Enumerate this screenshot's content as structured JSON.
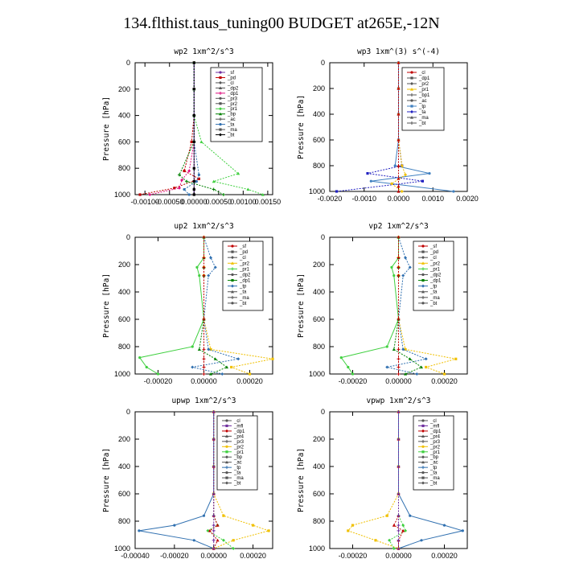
{
  "title": "134.flthist.taus_tuning00  BUDGET at265E,-12N",
  "chart_data": [
    {
      "type": "line",
      "title": "wp2   1xm^2/s^3",
      "ylabel": "Pressure [hPa]",
      "ylim": [
        1000,
        0
      ],
      "xlim": [
        -0.0012,
        0.0016
      ],
      "xticks": [
        -0.001,
        -0.0005,
        0.0,
        0.0005,
        0.001,
        0.0015
      ],
      "xtick_labels": [
        "-0.00100",
        "-0.00050",
        "0.00000",
        "0.00050",
        "0.00100",
        "0.00150"
      ],
      "yticks": [
        0,
        200,
        400,
        600,
        800,
        1000
      ],
      "legend": [
        "_sf",
        "_pd",
        "_cl",
        "_dp2",
        "_dp1",
        "_pr3",
        "_pr2",
        "_pr1",
        "_bp",
        "_ac",
        "_ta",
        "_ma",
        "_bt"
      ],
      "series": [
        {
          "name": "_sf",
          "color": "#7030a0",
          "x": [
            0,
            0,
            0,
            0,
            0,
            0,
            0,
            0
          ],
          "y": [
            0,
            200,
            400,
            600,
            800,
            900,
            960,
            1000
          ]
        },
        {
          "name": "_pd",
          "color": "#c00000",
          "x": [
            0,
            0,
            0,
            -5e-05,
            -0.0002,
            0.0001,
            -0.0004,
            -0.0011
          ],
          "y": [
            0,
            200,
            400,
            600,
            820,
            880,
            950,
            1000
          ]
        },
        {
          "name": "_dp1",
          "color": "#e01080",
          "x": [
            0,
            0,
            0,
            0,
            -0.0001,
            -0.00025,
            -0.0003,
            -0.0009
          ],
          "y": [
            0,
            200,
            400,
            600,
            820,
            890,
            950,
            1000
          ]
        },
        {
          "name": "_pr1",
          "color": "#40d040",
          "x": [
            0,
            0,
            0,
            0.00015,
            0.0009,
            0.0004,
            0.0011,
            0.0014
          ],
          "y": [
            0,
            200,
            400,
            600,
            840,
            900,
            960,
            1000
          ]
        },
        {
          "name": "_bp",
          "color": "#008000",
          "x": [
            0,
            0,
            0,
            0,
            -0.0003,
            -0.00015,
            0.0004,
            0.0006
          ],
          "y": [
            0,
            200,
            400,
            600,
            850,
            900,
            960,
            1000
          ]
        },
        {
          "name": "_ta",
          "color": "#3070b0",
          "x": [
            0,
            0,
            0,
            0,
            0.0001,
            5e-05,
            -0.0002,
            -0.0001
          ],
          "y": [
            0,
            200,
            400,
            600,
            850,
            900,
            960,
            1000
          ]
        },
        {
          "name": "_bt",
          "color": "#000000",
          "x": [
            0,
            0,
            0,
            0,
            0,
            0,
            0,
            0
          ],
          "y": [
            0,
            200,
            400,
            600,
            800,
            900,
            960,
            1000
          ]
        }
      ]
    },
    {
      "type": "line",
      "title": "wp3   1xm^(3) s^(-4)",
      "ylabel": "Pressure [hPa]",
      "ylim": [
        1000,
        0
      ],
      "xlim": [
        -0.002,
        0.002
      ],
      "xticks": [
        -0.002,
        -0.001,
        0.0,
        0.001,
        0.002
      ],
      "xtick_labels": [
        "-0.0020",
        "-0.0010",
        "0.0000",
        "0.0010",
        "0.0020"
      ],
      "yticks": [
        0,
        200,
        400,
        600,
        800,
        1000
      ],
      "legend": [
        "_cl",
        "_dp1",
        "_pr2",
        "_pr1",
        "_bp1",
        "_ac",
        "_tp",
        "_ta",
        "_ma",
        "_bt"
      ],
      "series": [
        {
          "name": "_tp",
          "color": "#4080c0",
          "x": [
            0,
            0,
            0,
            0,
            -0.0001,
            0.0009,
            -0.0008,
            0.0016
          ],
          "y": [
            0,
            200,
            400,
            600,
            800,
            860,
            920,
            1000
          ]
        },
        {
          "name": "_ta",
          "color": "#2020c0",
          "x": [
            0,
            0,
            0,
            0,
            0.0001,
            -0.0009,
            0.0007,
            -0.0018
          ],
          "y": [
            0,
            200,
            400,
            600,
            800,
            860,
            920,
            1000
          ]
        },
        {
          "name": "_pr1",
          "color": "#f0c000",
          "x": [
            0,
            0,
            0,
            0,
            0.0001,
            0.0002,
            -0.0002,
            0.0001
          ],
          "y": [
            0,
            200,
            400,
            600,
            800,
            870,
            940,
            1000
          ]
        },
        {
          "name": "_cl",
          "color": "#c00000",
          "x": [
            0,
            0,
            0,
            0,
            0,
            0,
            0,
            0
          ],
          "y": [
            0,
            200,
            400,
            600,
            800,
            900,
            960,
            1000
          ]
        }
      ]
    },
    {
      "type": "line",
      "title": "up2   1xm^2/s^3",
      "ylabel": "Pressure [hPa]",
      "ylim": [
        1000,
        0
      ],
      "xlim": [
        -0.0003,
        0.0003
      ],
      "xticks": [
        -0.0002,
        0.0,
        0.0002
      ],
      "xtick_labels": [
        "-0.00020",
        "0.00000",
        "0.00020"
      ],
      "yticks": [
        0,
        200,
        400,
        600,
        800,
        1000
      ],
      "legend": [
        "_sf",
        "_pd",
        "_cl",
        "_pr2",
        "_pr1",
        "_dp2",
        "_dp1",
        "_tp",
        "_ta",
        "_ma",
        "_bt"
      ],
      "series": [
        {
          "name": "_pr1",
          "color": "#40d040",
          "x": [
            0,
            0,
            -3e-05,
            -2e-05,
            0,
            -5e-05,
            -0.00028,
            -0.00025,
            -0.0002
          ],
          "y": [
            0,
            150,
            220,
            280,
            600,
            800,
            880,
            950,
            1000
          ]
        },
        {
          "name": "_pr2",
          "color": "#f0c000",
          "x": [
            0,
            0,
            0,
            0,
            0,
            3e-05,
            0.0003,
            0.00012,
            0.0002
          ],
          "y": [
            0,
            150,
            220,
            280,
            600,
            820,
            890,
            950,
            1000
          ]
        },
        {
          "name": "_tp",
          "color": "#3070b0",
          "x": [
            0,
            3e-05,
            5e-05,
            2e-05,
            0,
            2e-05,
            0.00015,
            -5e-05,
            8e-05
          ],
          "y": [
            0,
            150,
            220,
            280,
            600,
            820,
            890,
            950,
            1000
          ]
        },
        {
          "name": "_dp1",
          "color": "#008000",
          "x": [
            0,
            0,
            0,
            0,
            0,
            -2e-05,
            5e-05,
            0.0001,
            3e-05
          ],
          "y": [
            0,
            150,
            220,
            280,
            600,
            820,
            890,
            950,
            1000
          ]
        },
        {
          "name": "_sf",
          "color": "#c00000",
          "x": [
            0,
            0,
            0,
            0,
            0,
            0,
            0,
            0,
            0
          ],
          "y": [
            0,
            150,
            220,
            280,
            600,
            820,
            890,
            950,
            1000
          ]
        }
      ]
    },
    {
      "type": "line",
      "title": "vp2   1xm^2/s^3",
      "ylabel": "Pressure [hPa]",
      "ylim": [
        1000,
        0
      ],
      "xlim": [
        -0.0003,
        0.0003
      ],
      "xticks": [
        -0.0002,
        0.0,
        0.0002
      ],
      "xtick_labels": [
        "-0.00020",
        "0.00000",
        "0.00020"
      ],
      "yticks": [
        0,
        200,
        400,
        600,
        800,
        1000
      ],
      "legend": [
        "_sf",
        "_pd",
        "_cl",
        "_pr2",
        "_pr1",
        "_dp2",
        "_dp1",
        "_tp",
        "_ta",
        "_ma",
        "_bt"
      ],
      "series": [
        {
          "name": "_pr1",
          "color": "#40d040",
          "x": [
            0,
            0,
            -3e-05,
            -2e-05,
            0,
            -5e-05,
            -0.00025,
            -0.00022,
            -0.0002
          ],
          "y": [
            0,
            150,
            220,
            280,
            600,
            800,
            880,
            950,
            1000
          ]
        },
        {
          "name": "_pr2",
          "color": "#f0c000",
          "x": [
            0,
            0,
            0,
            0,
            0,
            3e-05,
            0.00025,
            0.00012,
            0.0002
          ],
          "y": [
            0,
            150,
            220,
            280,
            600,
            820,
            890,
            950,
            1000
          ]
        },
        {
          "name": "_tp",
          "color": "#3070b0",
          "x": [
            0,
            3e-05,
            5e-05,
            2e-05,
            0,
            2e-05,
            0.00012,
            -5e-05,
            8e-05
          ],
          "y": [
            0,
            150,
            220,
            280,
            600,
            820,
            890,
            950,
            1000
          ]
        },
        {
          "name": "_dp1",
          "color": "#008000",
          "x": [
            0,
            0,
            0,
            0,
            0,
            -2e-05,
            5e-05,
            0.0001,
            3e-05
          ],
          "y": [
            0,
            150,
            220,
            280,
            600,
            820,
            890,
            950,
            1000
          ]
        },
        {
          "name": "_sf",
          "color": "#c00000",
          "x": [
            0,
            0,
            0,
            0,
            0,
            0,
            0,
            0,
            0
          ],
          "y": [
            0,
            150,
            220,
            280,
            600,
            820,
            890,
            950,
            1000
          ]
        }
      ]
    },
    {
      "type": "line",
      "title": "upwp   1xm^2/s^3",
      "ylabel": "Pressure [hPa]",
      "ylim": [
        1000,
        0
      ],
      "xlim": [
        -0.0004,
        0.0003
      ],
      "xticks": [
        -0.0004,
        -0.0002,
        0.0,
        0.0002
      ],
      "xtick_labels": [
        "-0.00040",
        "-0.00020",
        "0.00000",
        "0.00020"
      ],
      "yticks": [
        0,
        200,
        400,
        600,
        800,
        1000
      ],
      "legend": [
        "_cl",
        "_mfl",
        "_dp1",
        "_pr4",
        "_pr3",
        "_pr2",
        "_pr1",
        "_bp",
        "_ac",
        "_tp",
        "_ta",
        "_ma",
        "_bt"
      ],
      "series": [
        {
          "name": "_tp",
          "color": "#3070b0",
          "x": [
            0,
            0,
            0,
            0,
            -5e-05,
            -0.0002,
            -0.00038,
            -0.0001,
            0
          ],
          "y": [
            0,
            200,
            400,
            600,
            760,
            830,
            870,
            940,
            1000
          ]
        },
        {
          "name": "_pr2",
          "color": "#f0c000",
          "x": [
            0,
            0,
            0,
            0,
            5e-05,
            0.0002,
            0.00028,
            0.0001,
            0
          ],
          "y": [
            0,
            200,
            400,
            600,
            760,
            830,
            870,
            940,
            1000
          ]
        },
        {
          "name": "_pr1",
          "color": "#40d040",
          "x": [
            0,
            0,
            0,
            0,
            0,
            2e-05,
            -3e-05,
            5e-05,
            0.0001
          ],
          "y": [
            0,
            200,
            400,
            600,
            760,
            830,
            870,
            940,
            1000
          ]
        },
        {
          "name": "_dp1",
          "color": "#c00000",
          "x": [
            0,
            0,
            0,
            0,
            0,
            2e-05,
            -2e-05,
            2e-05,
            0
          ],
          "y": [
            0,
            200,
            400,
            600,
            760,
            830,
            870,
            940,
            1000
          ]
        },
        {
          "name": "_mfl",
          "color": "#7030a0",
          "x": [
            0,
            0,
            0,
            0,
            0,
            0,
            0,
            0,
            0
          ],
          "y": [
            0,
            200,
            400,
            600,
            760,
            830,
            870,
            940,
            1000
          ]
        }
      ]
    },
    {
      "type": "line",
      "title": "vpwp   1xm^2/s^3",
      "ylabel": "Pressure [hPa]",
      "ylim": [
        1000,
        0
      ],
      "xlim": [
        -0.0003,
        0.0003
      ],
      "xticks": [
        -0.0002,
        0.0,
        0.0002
      ],
      "xtick_labels": [
        "-0.00020",
        "0.00000",
        "0.00020"
      ],
      "yticks": [
        0,
        200,
        400,
        600,
        800,
        1000
      ],
      "legend": [
        "_cl",
        "_mfl",
        "_dp1",
        "_pr4",
        "_pr3",
        "_pr2",
        "_pr1",
        "_bp",
        "_ac",
        "_tp",
        "_ta",
        "_ma",
        "_bt"
      ],
      "series": [
        {
          "name": "_tp",
          "color": "#3070b0",
          "x": [
            0,
            0,
            0,
            0,
            5e-05,
            0.0002,
            0.00028,
            0.0001,
            0
          ],
          "y": [
            0,
            200,
            400,
            600,
            760,
            830,
            870,
            940,
            1000
          ]
        },
        {
          "name": "_pr2",
          "color": "#f0c000",
          "x": [
            0,
            0,
            0,
            0,
            -5e-05,
            -0.0002,
            -0.00022,
            -0.0001,
            0
          ],
          "y": [
            0,
            200,
            400,
            600,
            760,
            830,
            870,
            940,
            1000
          ]
        },
        {
          "name": "_pr1",
          "color": "#40d040",
          "x": [
            0,
            0,
            0,
            0,
            0,
            2e-05,
            3e-05,
            -4e-05,
            -2e-05
          ],
          "y": [
            0,
            200,
            400,
            600,
            760,
            830,
            870,
            940,
            1000
          ]
        },
        {
          "name": "_dp1",
          "color": "#c00000",
          "x": [
            0,
            0,
            0,
            0,
            0,
            -2e-05,
            2e-05,
            0,
            0
          ],
          "y": [
            0,
            200,
            400,
            600,
            760,
            830,
            870,
            940,
            1000
          ]
        },
        {
          "name": "_mfl",
          "color": "#7030a0",
          "x": [
            0,
            0,
            0,
            0,
            0,
            0,
            0,
            0,
            0
          ],
          "y": [
            0,
            200,
            400,
            600,
            760,
            830,
            870,
            940,
            1000
          ]
        }
      ]
    }
  ]
}
